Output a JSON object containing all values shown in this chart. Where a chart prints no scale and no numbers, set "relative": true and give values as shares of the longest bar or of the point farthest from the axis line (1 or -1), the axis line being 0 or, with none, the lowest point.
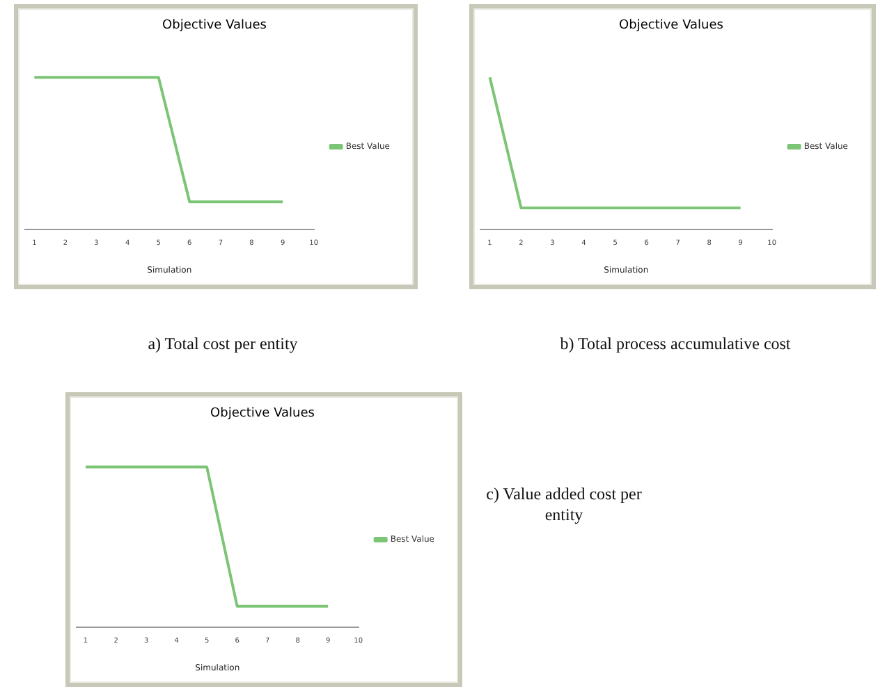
{
  "chart_data": [
    {
      "type": "line",
      "title": "Objective Values",
      "xlabel": "Simulation",
      "x": [
        1,
        2,
        3,
        4,
        5,
        6,
        7,
        8,
        9
      ],
      "relative": true,
      "xlim": [
        0.7,
        10
      ],
      "xticks": [
        1,
        2,
        3,
        4,
        5,
        6,
        7,
        8,
        9,
        10
      ],
      "series": [
        {
          "name": "Best Value",
          "color": "#7cc576",
          "values": [
            1,
            1,
            1,
            1,
            1,
            0.18,
            0.18,
            0.18,
            0.18
          ]
        }
      ],
      "legend": "right",
      "grid": false,
      "marker": "none",
      "annotations": [
        "a) Total cost per entity"
      ]
    },
    {
      "type": "line",
      "title": "Objective Values",
      "xlabel": "Simulation",
      "x": [
        1,
        2,
        3,
        4,
        5,
        6,
        7,
        8,
        9
      ],
      "relative": true,
      "xlim": [
        0.7,
        10
      ],
      "xticks": [
        1,
        2,
        3,
        4,
        5,
        6,
        7,
        8,
        9,
        10
      ],
      "series": [
        {
          "name": "Best Value",
          "color": "#7cc576",
          "values": [
            1,
            0.14,
            0.14,
            0.14,
            0.14,
            0.14,
            0.14,
            0.14,
            0.14
          ]
        }
      ],
      "legend": "right",
      "grid": false,
      "marker": "none",
      "annotations": [
        "b) Total process accumulative cost"
      ]
    },
    {
      "type": "line",
      "title": "Objective Values",
      "xlabel": "Simulation",
      "x": [
        1,
        2,
        3,
        4,
        5,
        6,
        7,
        8,
        9
      ],
      "relative": true,
      "xlim": [
        0.7,
        10
      ],
      "xticks": [
        1,
        2,
        3,
        4,
        5,
        6,
        7,
        8,
        9,
        10
      ],
      "series": [
        {
          "name": "Best Value",
          "color": "#7cc576",
          "values": [
            1,
            1,
            1,
            1,
            1,
            0.13,
            0.13,
            0.13,
            0.13
          ]
        }
      ],
      "legend": "right",
      "grid": false,
      "marker": "none",
      "annotations": [
        "c) Value added cost per entity"
      ]
    }
  ]
}
